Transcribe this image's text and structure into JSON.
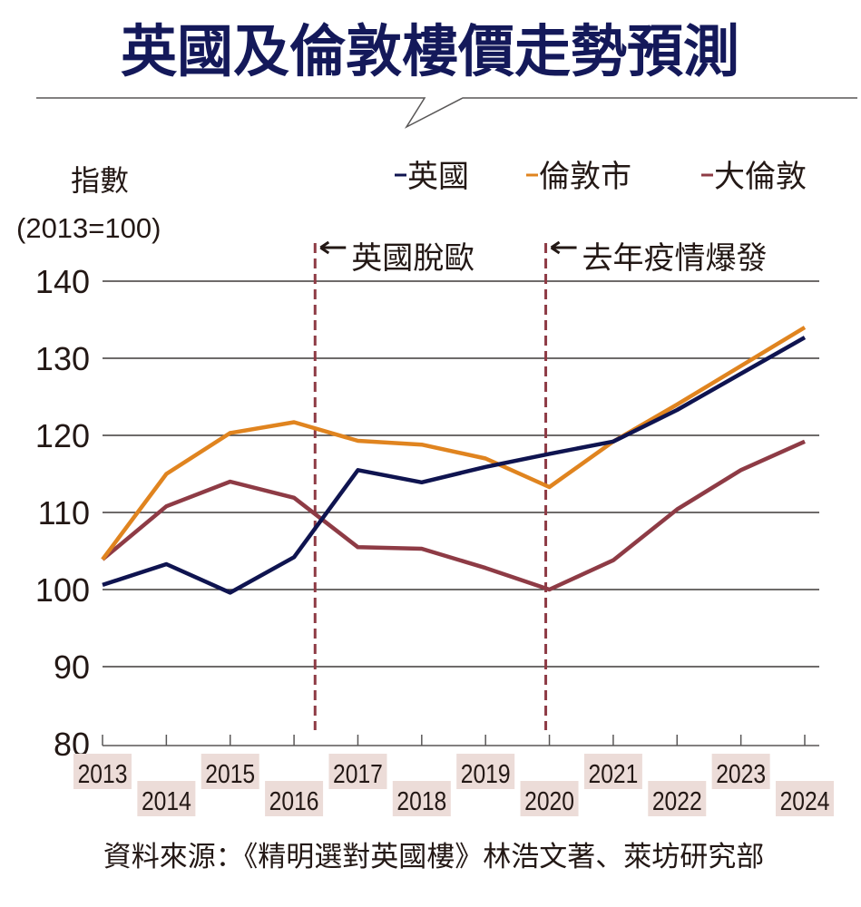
{
  "title": "英國及倫敦樓價走勢預測",
  "source": "資料來源：《精明選對英國樓》林浩文著、萊坊研究部",
  "colors": {
    "uk": "#0f1450",
    "london_city": "#e0841f",
    "greater_london": "#8e3b45",
    "event_line": "#8e3b45",
    "year_label_bg": "#ecdcd8",
    "title": "#14195a"
  },
  "chart_data": {
    "type": "line",
    "ylabel": "指數",
    "ylabel_sub": "(2013=100)",
    "ylim": [
      80,
      140
    ],
    "yticks": [
      80,
      90,
      100,
      110,
      120,
      130,
      140
    ],
    "grid": true,
    "legend_position": "top-right",
    "x": [
      "2013",
      "2014",
      "2015",
      "2016",
      "2017",
      "2018",
      "2019",
      "2020",
      "2021",
      "2022",
      "2023",
      "2024"
    ],
    "series": [
      {
        "name": "英國",
        "values": [
          100.6,
          103.3,
          99.6,
          104.2,
          115.5,
          113.9,
          115.9,
          117.6,
          119.2,
          123.3,
          128.0,
          132.7
        ]
      },
      {
        "name": "倫敦市",
        "values": [
          103.9,
          115.0,
          120.3,
          121.7,
          119.3,
          118.8,
          117.0,
          113.3,
          119.2,
          124.0,
          129.0,
          134.0
        ]
      },
      {
        "name": "大倫敦",
        "values": [
          103.9,
          110.8,
          114.0,
          111.9,
          105.5,
          105.3,
          102.8,
          100.0,
          103.8,
          110.4,
          115.5,
          119.2
        ]
      }
    ],
    "annotations": [
      {
        "text": "英國脫歐",
        "x": 2016.5
      },
      {
        "text": "去年疫情爆發",
        "x": 2020
      }
    ]
  }
}
